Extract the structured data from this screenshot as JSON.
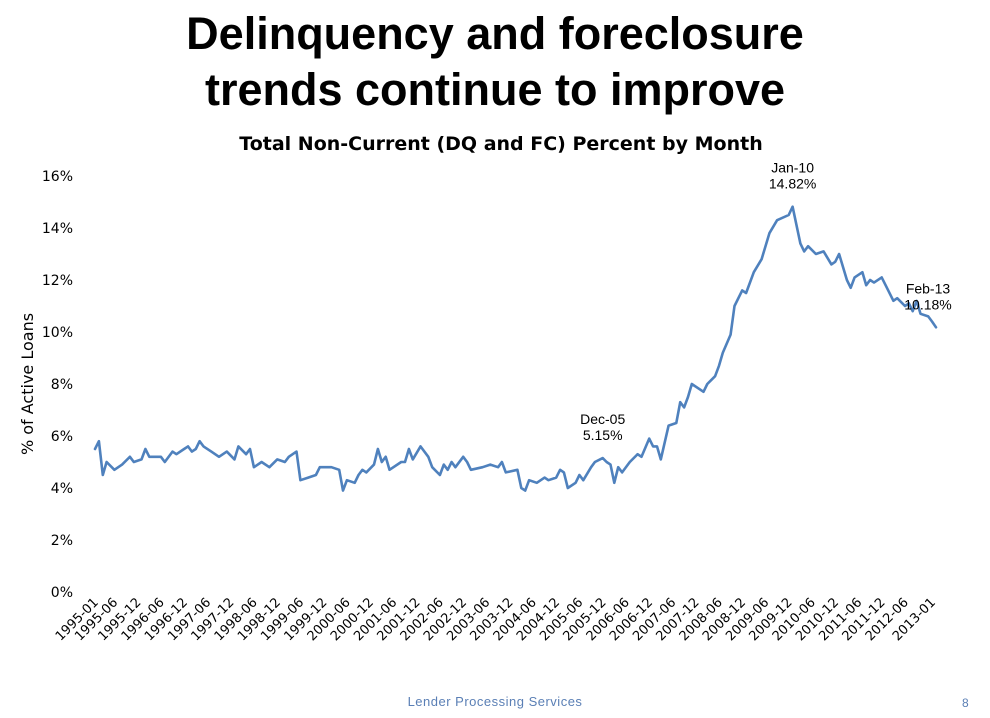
{
  "slide": {
    "title_line1": "Delinquency and foreclosure",
    "title_line2": "trends continue to improve",
    "footer": "Lender Processing Services",
    "page_number": "8"
  },
  "chart_data": {
    "type": "line",
    "title": "Total Non-Current (DQ and FC) Percent by Month",
    "ylabel": "% of Active Loans",
    "xlabel": "",
    "ylim": [
      0,
      16
    ],
    "y_ticks": [
      "0%",
      "2%",
      "4%",
      "6%",
      "8%",
      "10%",
      "12%",
      "14%",
      "16%"
    ],
    "x_start": "1995-01",
    "x_end": "2013-02",
    "x_ticks": [
      "1995-01",
      "1995-06",
      "1995-12",
      "1996-06",
      "1996-12",
      "1997-06",
      "1997-12",
      "1998-06",
      "1998-12",
      "1999-06",
      "1999-12",
      "2000-06",
      "2000-12",
      "2001-06",
      "2001-12",
      "2002-06",
      "2002-12",
      "2003-06",
      "2003-12",
      "2004-06",
      "2004-12",
      "2005-06",
      "2005-12",
      "2006-06",
      "2006-12",
      "2007-06",
      "2007-12",
      "2008-06",
      "2008-12",
      "2009-06",
      "2009-12",
      "2010-06",
      "2010-12",
      "2011-06",
      "2011-12",
      "2012-06",
      "2013-01"
    ],
    "grid": false,
    "legend": "none",
    "line_color": "#4f81bd",
    "annotations": [
      {
        "x": "2005-12",
        "line1": "Dec-05",
        "line2": "5.15%"
      },
      {
        "x": "2010-01",
        "line1": "Jan-10",
        "line2": "14.82%"
      },
      {
        "x": "2013-02",
        "line1": "Feb-13",
        "line2": "10.18%"
      }
    ],
    "series": [
      {
        "anchors": [
          [
            "1995-01",
            5.5
          ],
          [
            "1995-02",
            5.8
          ],
          [
            "1995-03",
            4.5
          ],
          [
            "1995-04",
            5.0
          ],
          [
            "1995-06",
            4.7
          ],
          [
            "1995-08",
            4.9
          ],
          [
            "1995-10",
            5.2
          ],
          [
            "1995-11",
            5.0
          ],
          [
            "1996-01",
            5.1
          ],
          [
            "1996-02",
            5.5
          ],
          [
            "1996-03",
            5.2
          ],
          [
            "1996-06",
            5.2
          ],
          [
            "1996-07",
            5.0
          ],
          [
            "1996-09",
            5.4
          ],
          [
            "1996-10",
            5.3
          ],
          [
            "1996-12",
            5.5
          ],
          [
            "1997-01",
            5.6
          ],
          [
            "1997-02",
            5.4
          ],
          [
            "1997-03",
            5.5
          ],
          [
            "1997-04",
            5.8
          ],
          [
            "1997-05",
            5.6
          ],
          [
            "1997-07",
            5.4
          ],
          [
            "1997-09",
            5.2
          ],
          [
            "1997-11",
            5.4
          ],
          [
            "1998-01",
            5.1
          ],
          [
            "1998-02",
            5.6
          ],
          [
            "1998-04",
            5.3
          ],
          [
            "1998-05",
            5.5
          ],
          [
            "1998-06",
            4.8
          ],
          [
            "1998-08",
            5.0
          ],
          [
            "1998-10",
            4.8
          ],
          [
            "1998-12",
            5.1
          ],
          [
            "1999-02",
            5.0
          ],
          [
            "1999-03",
            5.2
          ],
          [
            "1999-05",
            5.4
          ],
          [
            "1999-06",
            4.3
          ],
          [
            "1999-08",
            4.4
          ],
          [
            "1999-10",
            4.5
          ],
          [
            "1999-11",
            4.8
          ],
          [
            "2000-02",
            4.8
          ],
          [
            "2000-04",
            4.7
          ],
          [
            "2000-05",
            3.9
          ],
          [
            "2000-06",
            4.3
          ],
          [
            "2000-08",
            4.2
          ],
          [
            "2000-09",
            4.5
          ],
          [
            "2000-10",
            4.7
          ],
          [
            "2000-11",
            4.6
          ],
          [
            "2001-01",
            4.9
          ],
          [
            "2001-02",
            5.5
          ],
          [
            "2001-03",
            5.0
          ],
          [
            "2001-04",
            5.2
          ],
          [
            "2001-05",
            4.7
          ],
          [
            "2001-08",
            5.0
          ],
          [
            "2001-09",
            5.0
          ],
          [
            "2001-10",
            5.5
          ],
          [
            "2001-11",
            5.1
          ],
          [
            "2002-01",
            5.6
          ],
          [
            "2002-03",
            5.2
          ],
          [
            "2002-04",
            4.8
          ],
          [
            "2002-06",
            4.5
          ],
          [
            "2002-07",
            4.9
          ],
          [
            "2002-08",
            4.7
          ],
          [
            "2002-09",
            5.0
          ],
          [
            "2002-10",
            4.8
          ],
          [
            "2002-12",
            5.2
          ],
          [
            "2003-01",
            5.0
          ],
          [
            "2003-02",
            4.7
          ],
          [
            "2003-05",
            4.8
          ],
          [
            "2003-07",
            4.9
          ],
          [
            "2003-09",
            4.8
          ],
          [
            "2003-10",
            5.0
          ],
          [
            "2003-11",
            4.6
          ],
          [
            "2004-02",
            4.7
          ],
          [
            "2004-03",
            4.0
          ],
          [
            "2004-04",
            3.9
          ],
          [
            "2004-05",
            4.3
          ],
          [
            "2004-07",
            4.2
          ],
          [
            "2004-09",
            4.4
          ],
          [
            "2004-10",
            4.3
          ],
          [
            "2004-12",
            4.4
          ],
          [
            "2005-01",
            4.7
          ],
          [
            "2005-02",
            4.6
          ],
          [
            "2005-03",
            4.0
          ],
          [
            "2005-05",
            4.2
          ],
          [
            "2005-06",
            4.5
          ],
          [
            "2005-07",
            4.3
          ],
          [
            "2005-09",
            4.8
          ],
          [
            "2005-10",
            5.0
          ],
          [
            "2005-12",
            5.15
          ],
          [
            "2006-01",
            5.0
          ],
          [
            "2006-02",
            4.9
          ],
          [
            "2006-03",
            4.2
          ],
          [
            "2006-04",
            4.8
          ],
          [
            "2006-05",
            4.6
          ],
          [
            "2006-07",
            5.0
          ],
          [
            "2006-09",
            5.3
          ],
          [
            "2006-10",
            5.2
          ],
          [
            "2006-12",
            5.9
          ],
          [
            "2007-01",
            5.6
          ],
          [
            "2007-02",
            5.6
          ],
          [
            "2007-03",
            5.1
          ],
          [
            "2007-05",
            6.4
          ],
          [
            "2007-07",
            6.5
          ],
          [
            "2007-08",
            7.3
          ],
          [
            "2007-09",
            7.1
          ],
          [
            "2007-10",
            7.5
          ],
          [
            "2007-11",
            8.0
          ],
          [
            "2008-01",
            7.8
          ],
          [
            "2008-02",
            7.7
          ],
          [
            "2008-03",
            8.0
          ],
          [
            "2008-05",
            8.3
          ],
          [
            "2008-06",
            8.7
          ],
          [
            "2008-07",
            9.2
          ],
          [
            "2008-09",
            9.9
          ],
          [
            "2008-10",
            11.0
          ],
          [
            "2008-12",
            11.6
          ],
          [
            "2009-01",
            11.5
          ],
          [
            "2009-03",
            12.3
          ],
          [
            "2009-05",
            12.8
          ],
          [
            "2009-07",
            13.8
          ],
          [
            "2009-09",
            14.3
          ],
          [
            "2009-12",
            14.5
          ],
          [
            "2010-01",
            14.82
          ],
          [
            "2010-03",
            13.4
          ],
          [
            "2010-04",
            13.1
          ],
          [
            "2010-05",
            13.3
          ],
          [
            "2010-07",
            13.0
          ],
          [
            "2010-09",
            13.1
          ],
          [
            "2010-11",
            12.6
          ],
          [
            "2010-12",
            12.7
          ],
          [
            "2011-01",
            13.0
          ],
          [
            "2011-03",
            12.0
          ],
          [
            "2011-04",
            11.7
          ],
          [
            "2011-05",
            12.1
          ],
          [
            "2011-07",
            12.3
          ],
          [
            "2011-08",
            11.8
          ],
          [
            "2011-09",
            12.0
          ],
          [
            "2011-10",
            11.9
          ],
          [
            "2011-12",
            12.1
          ],
          [
            "2012-01",
            11.8
          ],
          [
            "2012-03",
            11.2
          ],
          [
            "2012-04",
            11.3
          ],
          [
            "2012-06",
            11.0
          ],
          [
            "2012-07",
            11.1
          ],
          [
            "2012-08",
            10.8
          ],
          [
            "2012-09",
            11.2
          ],
          [
            "2012-10",
            10.7
          ],
          [
            "2012-12",
            10.6
          ],
          [
            "2013-01",
            10.4
          ],
          [
            "2013-02",
            10.18
          ]
        ]
      }
    ]
  }
}
